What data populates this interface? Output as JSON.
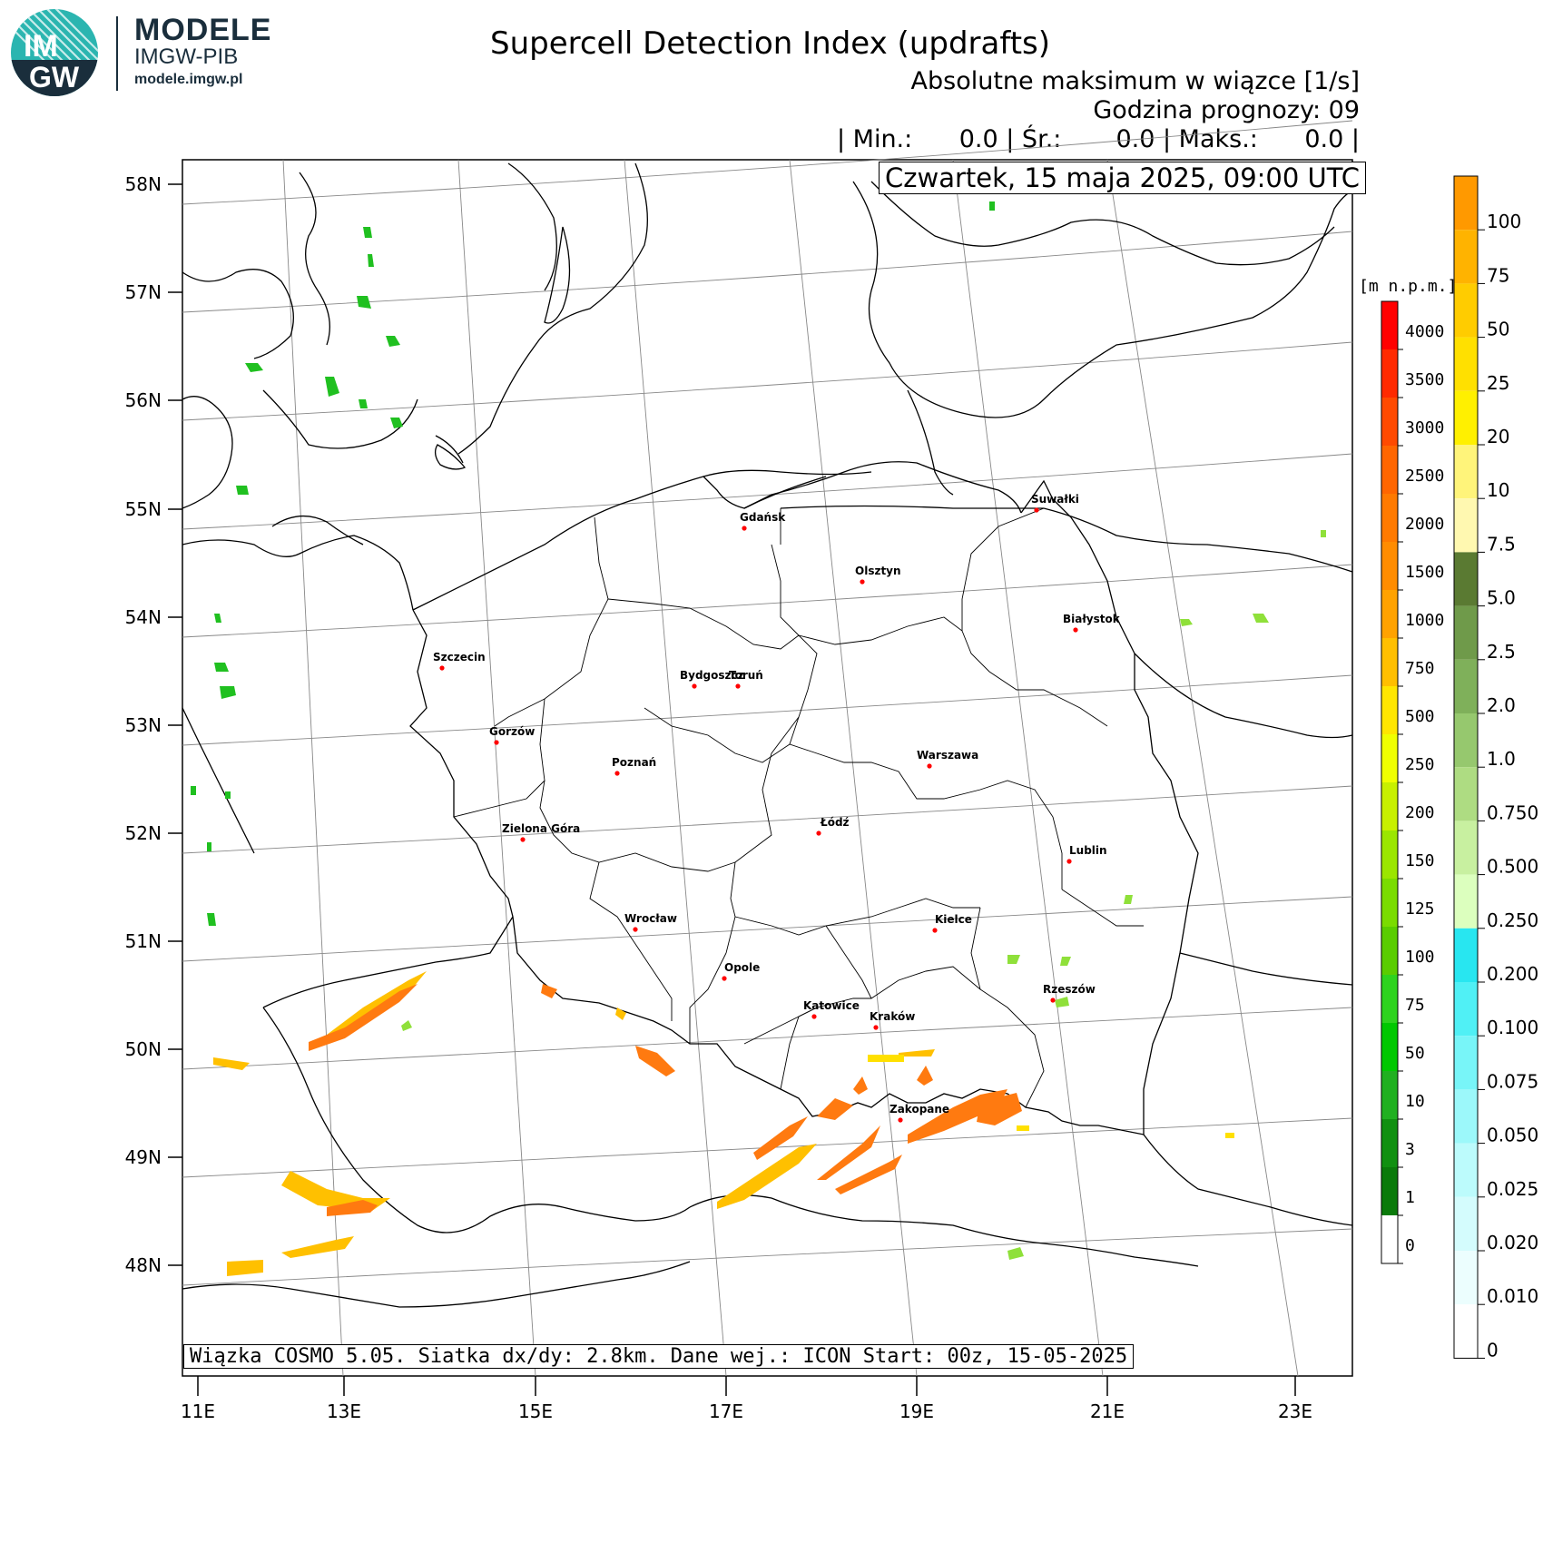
{
  "logo": {
    "badge_top": "IM",
    "badge_bottom": "GW",
    "brand": "MODELE",
    "org": "IMGW-PIB",
    "url": "modele.imgw.pl"
  },
  "header": {
    "title": "Supercell Detection Index (updrafts)",
    "subtitle": "Absolutne maksimum w wiązce [1/s]",
    "forecast_hour": "Godzina prognozy: 09",
    "stats": "| Min.:      0.0 | Śr.:       0.0 | Maks.:      0.0 |",
    "date": "Czwartek, 15 maja 2025, 09:00 UTC"
  },
  "footer": {
    "text": "Wiązka COSMO 5.05. Siatka dx/dy: 2.8km. Dane wej.: ICON Start: 00z, 15-05-2025"
  },
  "axes": {
    "lat_labels": [
      "58N",
      "57N",
      "56N",
      "55N",
      "54N",
      "53N",
      "52N",
      "51N",
      "50N",
      "49N",
      "48N"
    ],
    "lon_labels": [
      "11E",
      "13E",
      "15E",
      "17E",
      "19E",
      "21E",
      "23E"
    ]
  },
  "cities": [
    {
      "name": "Gdańsk"
    },
    {
      "name": "Suwałki"
    },
    {
      "name": "Olsztyn"
    },
    {
      "name": "Białystok"
    },
    {
      "name": "Szczecin"
    },
    {
      "name": "Bydgoszcz"
    },
    {
      "name": "Toruń"
    },
    {
      "name": "Gorzów"
    },
    {
      "name": "Poznań"
    },
    {
      "name": "Warszawa"
    },
    {
      "name": "Zielona Góra"
    },
    {
      "name": "Łódź"
    },
    {
      "name": "Lublin"
    },
    {
      "name": "Wrocław"
    },
    {
      "name": "Kielce"
    },
    {
      "name": "Opole"
    },
    {
      "name": "Rzeszów"
    },
    {
      "name": "Katowice"
    },
    {
      "name": "Kraków"
    },
    {
      "name": "Zakopane"
    }
  ],
  "elevation_legend": {
    "unit": "[m n.p.m.]",
    "labels": [
      "4000",
      "3500",
      "3000",
      "2500",
      "2000",
      "1500",
      "1000",
      "750",
      "500",
      "250",
      "200",
      "150",
      "125",
      "100",
      "75",
      "50",
      "10",
      "3",
      "1",
      "0"
    ],
    "colors": [
      "#ff0000",
      "#ff2a00",
      "#ff4a00",
      "#ff6600",
      "#ff7a00",
      "#ff8c00",
      "#ffa200",
      "#ffbf00",
      "#ffe600",
      "#f0ff00",
      "#c8f000",
      "#9be600",
      "#7adc00",
      "#5acd00",
      "#2ed31e",
      "#00c800",
      "#20b020",
      "#109010",
      "#0a7a0a",
      "#ffffff"
    ]
  },
  "value_legend": {
    "labels": [
      "100",
      "75",
      "50",
      "25",
      "20",
      "10",
      "7.5",
      "5.0",
      "2.5",
      "2.0",
      "1.0",
      "0.750",
      "0.500",
      "0.250",
      "0.200",
      "0.100",
      "0.075",
      "0.050",
      "0.025",
      "0.020",
      "0.010",
      "0"
    ],
    "colors": [
      "#ff9900",
      "#ffb300",
      "#ffcc00",
      "#ffe000",
      "#fff000",
      "#fff47a",
      "#fff8b0",
      "#5a7a32",
      "#6f9a4a",
      "#7fb05a",
      "#96c86e",
      "#aedc82",
      "#c8f0a0",
      "#dcffbe",
      "#28e6f0",
      "#50f0f5",
      "#78f5f8",
      "#9cf8fa",
      "#bcfbfc",
      "#d4fcfd",
      "#ecfefe",
      "#ffffff"
    ]
  },
  "colors": {
    "city_marker": "#ff0000",
    "map_line": "#000000",
    "grid_line": "#888888"
  }
}
